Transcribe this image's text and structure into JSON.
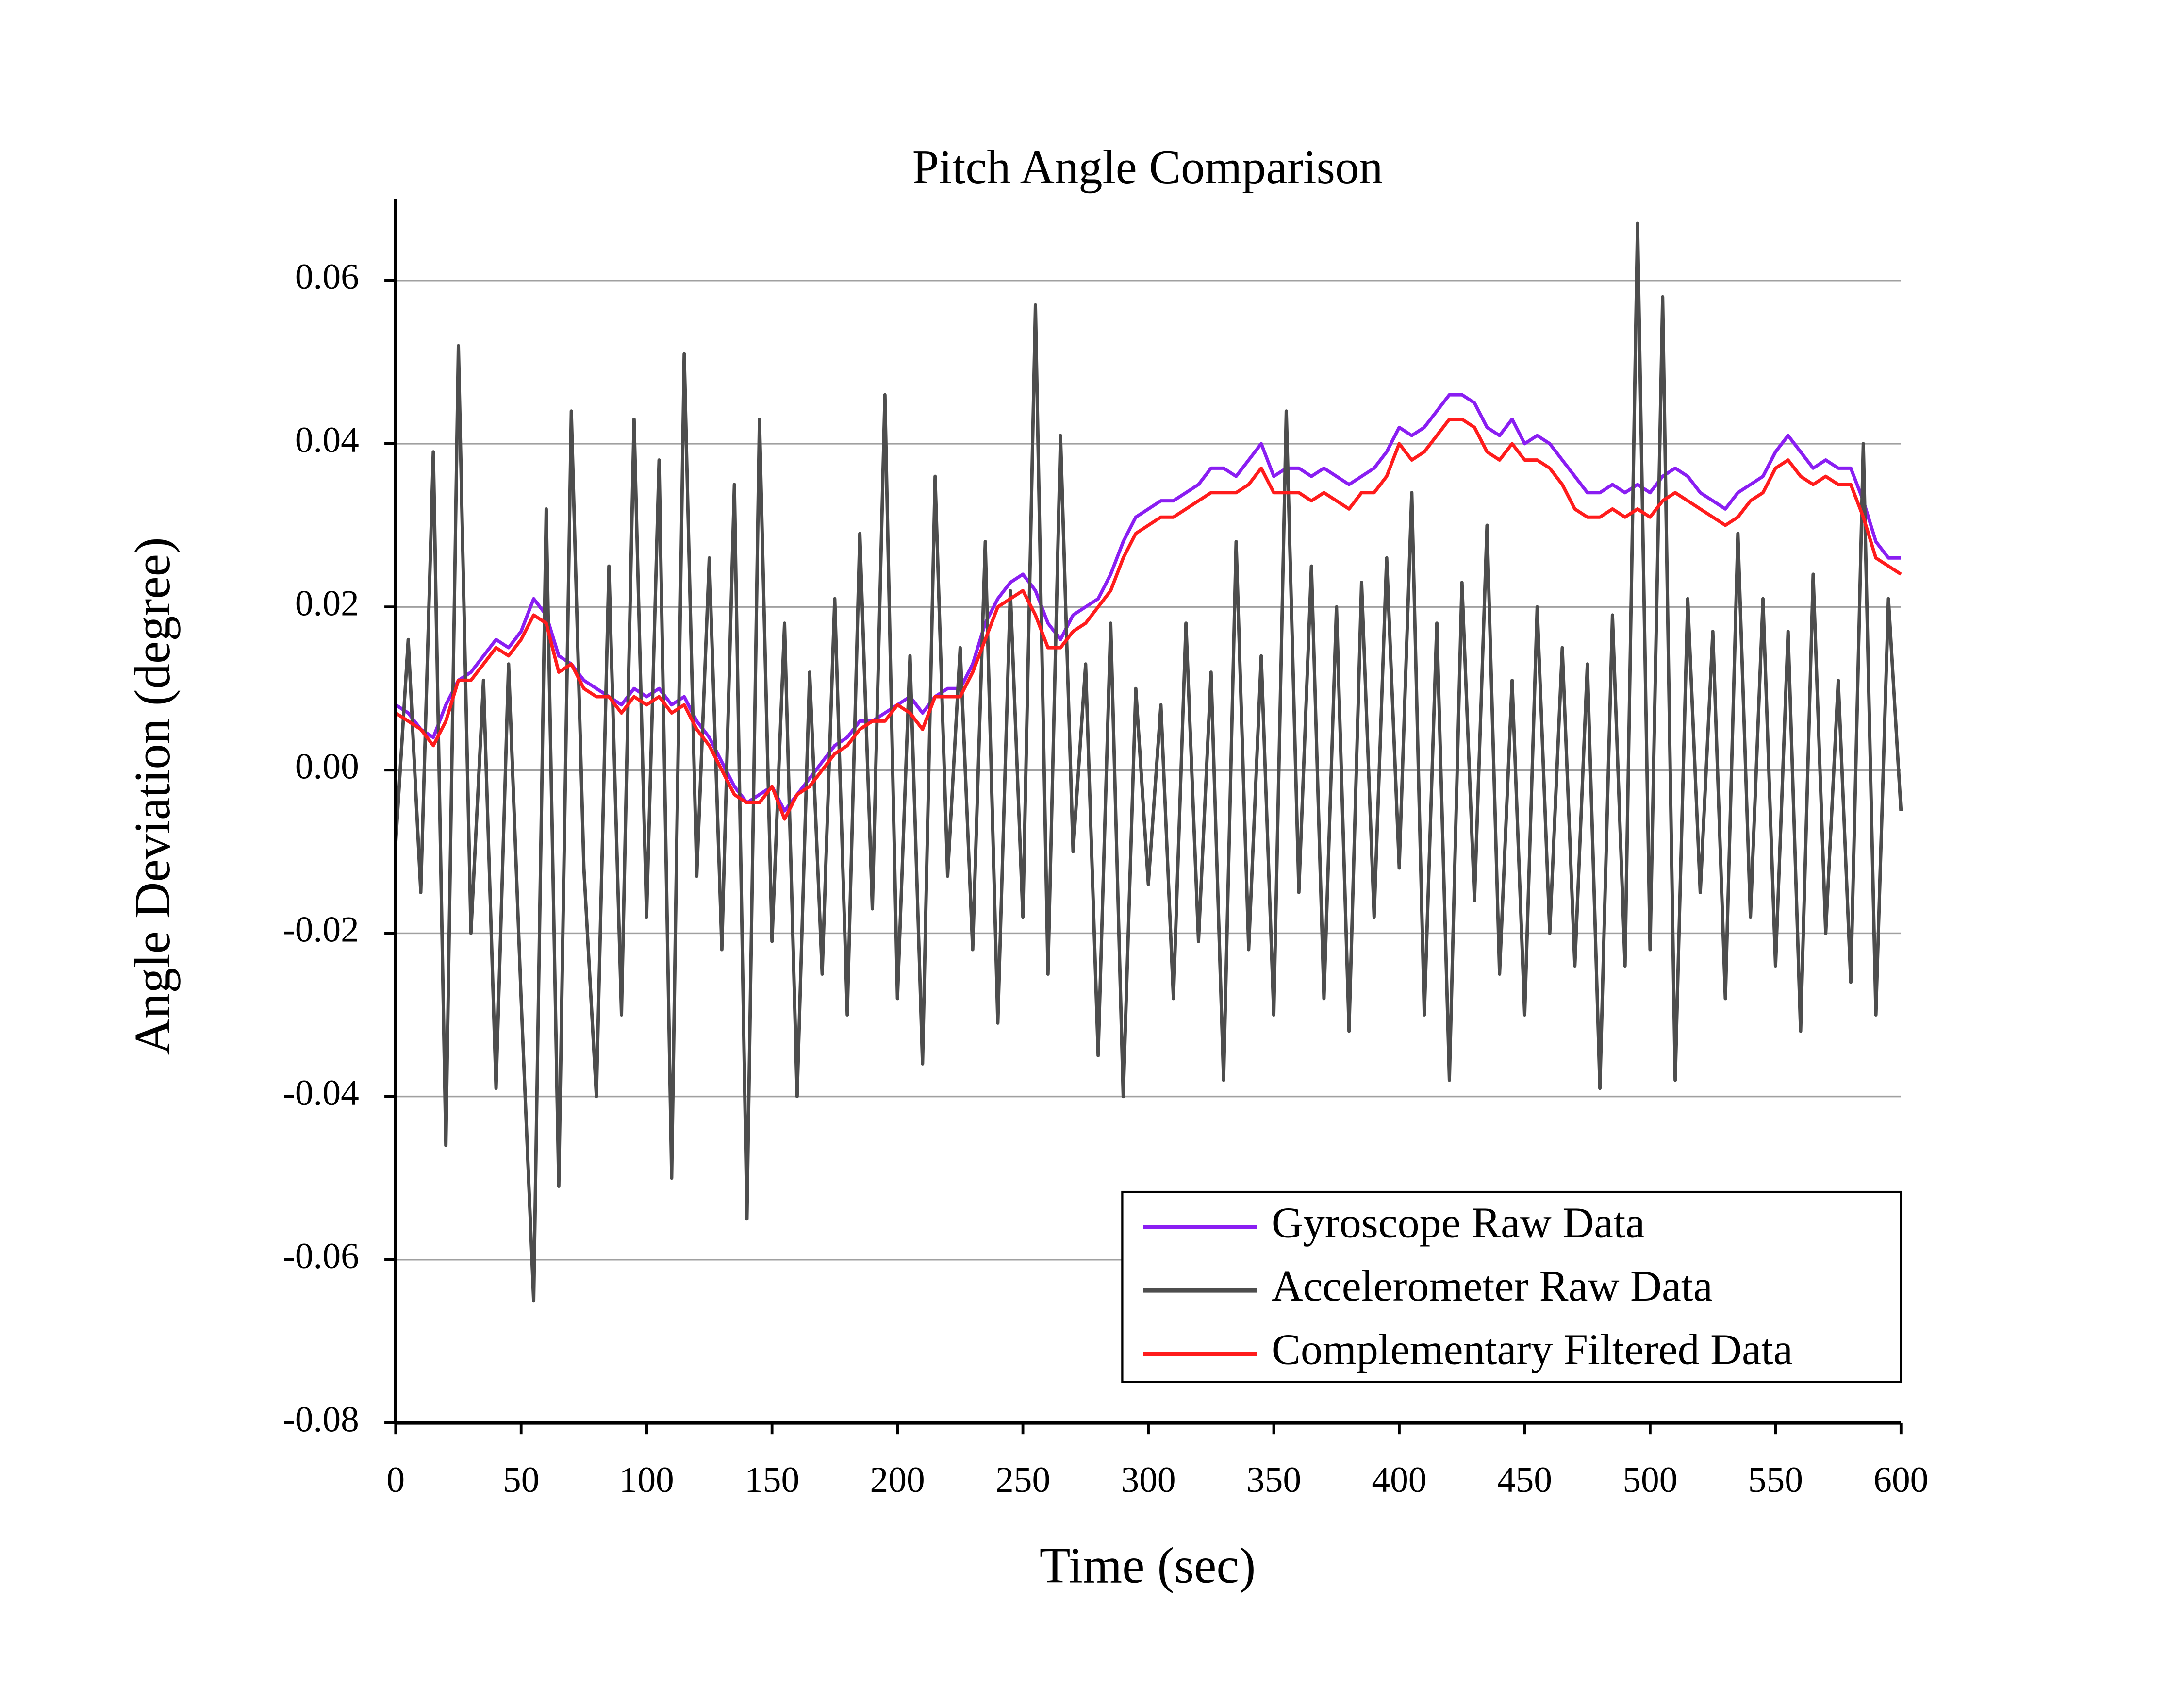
{
  "chart_data": {
    "type": "line",
    "title": "Pitch Angle Comparison",
    "x_label": "Time (sec)",
    "y_label": "Angle Deviation (degree)",
    "xlim": [
      0,
      600
    ],
    "ylim": [
      -0.08,
      0.07
    ],
    "xticks": [
      0,
      50,
      100,
      150,
      200,
      250,
      300,
      350,
      400,
      450,
      500,
      550,
      600
    ],
    "yticks": [
      -0.08,
      -0.06,
      -0.04,
      -0.02,
      {
        "value": 0,
        "label": "0.00"
      },
      0.02,
      0.04,
      0.06
    ],
    "grid": true,
    "legend": "lower right",
    "x": [
      0,
      5,
      10,
      15,
      20,
      25,
      30,
      35,
      40,
      45,
      50,
      55,
      60,
      65,
      70,
      75,
      80,
      85,
      90,
      95,
      100,
      105,
      110,
      115,
      120,
      125,
      130,
      135,
      140,
      145,
      150,
      155,
      160,
      165,
      170,
      175,
      180,
      185,
      190,
      195,
      200,
      205,
      210,
      215,
      220,
      225,
      230,
      235,
      240,
      245,
      250,
      255,
      260,
      265,
      270,
      275,
      280,
      285,
      290,
      295,
      300,
      305,
      310,
      315,
      320,
      325,
      330,
      335,
      340,
      345,
      350,
      355,
      360,
      365,
      370,
      375,
      380,
      385,
      390,
      395,
      400,
      405,
      410,
      415,
      420,
      425,
      430,
      435,
      440,
      445,
      450,
      455,
      460,
      465,
      470,
      475,
      480,
      485,
      490,
      495,
      500,
      505,
      510,
      515,
      520,
      525,
      530,
      535,
      540,
      545,
      550,
      555,
      560,
      565,
      570,
      575,
      580,
      585,
      590,
      595,
      600
    ],
    "series": [
      {
        "name": "Gyroscope Raw Data",
        "color": "#8a1ef2",
        "values": [
          0.008,
          0.007,
          0.005,
          0.004,
          0.008,
          0.011,
          0.012,
          0.014,
          0.016,
          0.015,
          0.017,
          0.021,
          0.019,
          0.014,
          0.013,
          0.011,
          0.01,
          0.009,
          0.008,
          0.01,
          0.009,
          0.01,
          0.008,
          0.009,
          0.006,
          0.004,
          0.001,
          -0.002,
          -0.004,
          -0.003,
          -0.002,
          -0.005,
          -0.003,
          -0.001,
          0.001,
          0.003,
          0.004,
          0.006,
          0.006,
          0.007,
          0.008,
          0.009,
          0.007,
          0.009,
          0.01,
          0.01,
          0.013,
          0.018,
          0.021,
          0.023,
          0.024,
          0.022,
          0.018,
          0.016,
          0.019,
          0.02,
          0.021,
          0.024,
          0.028,
          0.031,
          0.032,
          0.033,
          0.033,
          0.034,
          0.035,
          0.037,
          0.037,
          0.036,
          0.038,
          0.04,
          0.036,
          0.037,
          0.037,
          0.036,
          0.037,
          0.036,
          0.035,
          0.036,
          0.037,
          0.039,
          0.042,
          0.041,
          0.042,
          0.044,
          0.046,
          0.046,
          0.045,
          0.042,
          0.041,
          0.043,
          0.04,
          0.041,
          0.04,
          0.038,
          0.036,
          0.034,
          0.034,
          0.035,
          0.034,
          0.035,
          0.034,
          0.036,
          0.037,
          0.036,
          0.034,
          0.033,
          0.032,
          0.034,
          0.035,
          0.036,
          0.039,
          0.041,
          0.039,
          0.037,
          0.038,
          0.037,
          0.037,
          0.033,
          0.028,
          0.026,
          0.026
        ]
      },
      {
        "name": "Accelerometer Raw Data",
        "color": "#4d4d4d",
        "values": [
          -0.009,
          0.016,
          -0.015,
          0.039,
          -0.046,
          0.052,
          -0.02,
          0.011,
          -0.039,
          0.013,
          -0.028,
          -0.065,
          0.032,
          -0.051,
          0.044,
          -0.012,
          -0.04,
          0.025,
          -0.03,
          0.043,
          -0.018,
          0.038,
          -0.05,
          0.051,
          -0.013,
          0.026,
          -0.022,
          0.035,
          -0.055,
          0.043,
          -0.021,
          0.018,
          -0.04,
          0.012,
          -0.025,
          0.021,
          -0.03,
          0.029,
          -0.017,
          0.046,
          -0.028,
          0.014,
          -0.036,
          0.036,
          -0.013,
          0.015,
          -0.022,
          0.028,
          -0.031,
          0.022,
          -0.018,
          0.057,
          -0.025,
          0.041,
          -0.01,
          0.013,
          -0.035,
          0.018,
          -0.04,
          0.01,
          -0.014,
          0.008,
          -0.028,
          0.018,
          -0.021,
          0.012,
          -0.038,
          0.028,
          -0.022,
          0.014,
          -0.03,
          0.044,
          -0.015,
          0.025,
          -0.028,
          0.02,
          -0.032,
          0.023,
          -0.018,
          0.026,
          -0.012,
          0.034,
          -0.03,
          0.018,
          -0.038,
          0.023,
          -0.016,
          0.03,
          -0.025,
          0.011,
          -0.03,
          0.02,
          -0.02,
          0.015,
          -0.024,
          0.013,
          -0.039,
          0.019,
          -0.024,
          0.067,
          -0.022,
          0.058,
          -0.038,
          0.021,
          -0.015,
          0.017,
          -0.028,
          0.029,
          -0.018,
          0.021,
          -0.024,
          0.017,
          -0.032,
          0.024,
          -0.02,
          0.011,
          -0.026,
          0.04,
          -0.03,
          0.021,
          -0.005
        ]
      },
      {
        "name": "Complementary Filtered Data",
        "color": "#ff1c1c",
        "values": [
          0.007,
          0.006,
          0.005,
          0.003,
          0.006,
          0.011,
          0.011,
          0.013,
          0.015,
          0.014,
          0.016,
          0.019,
          0.018,
          0.012,
          0.013,
          0.01,
          0.009,
          0.009,
          0.007,
          0.009,
          0.008,
          0.009,
          0.007,
          0.008,
          0.005,
          0.003,
          0.0,
          -0.003,
          -0.004,
          -0.004,
          -0.002,
          -0.006,
          -0.003,
          -0.002,
          0.0,
          0.002,
          0.003,
          0.005,
          0.006,
          0.006,
          0.008,
          0.007,
          0.005,
          0.009,
          0.009,
          0.009,
          0.012,
          0.016,
          0.02,
          0.021,
          0.022,
          0.019,
          0.015,
          0.015,
          0.017,
          0.018,
          0.02,
          0.022,
          0.026,
          0.029,
          0.03,
          0.031,
          0.031,
          0.032,
          0.033,
          0.034,
          0.034,
          0.034,
          0.035,
          0.037,
          0.034,
          0.034,
          0.034,
          0.033,
          0.034,
          0.033,
          0.032,
          0.034,
          0.034,
          0.036,
          0.04,
          0.038,
          0.039,
          0.041,
          0.043,
          0.043,
          0.042,
          0.039,
          0.038,
          0.04,
          0.038,
          0.038,
          0.037,
          0.035,
          0.032,
          0.031,
          0.031,
          0.032,
          0.031,
          0.032,
          0.031,
          0.033,
          0.034,
          0.033,
          0.032,
          0.031,
          0.03,
          0.031,
          0.033,
          0.034,
          0.037,
          0.038,
          0.036,
          0.035,
          0.036,
          0.035,
          0.035,
          0.031,
          0.026,
          0.025,
          0.024
        ]
      }
    ]
  }
}
